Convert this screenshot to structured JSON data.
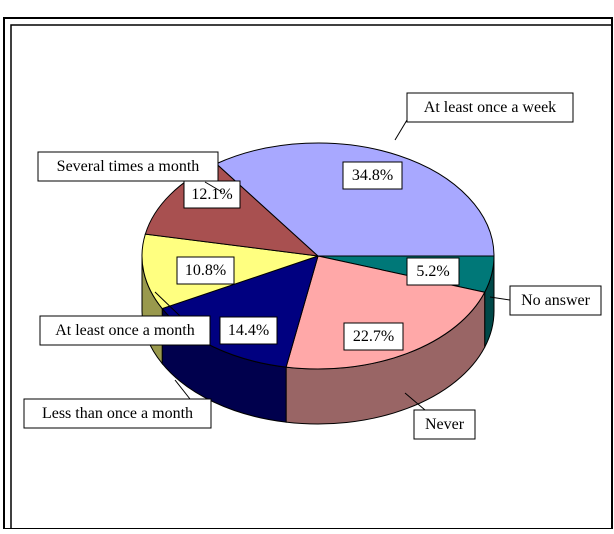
{
  "chart_data": {
    "type": "pie3d",
    "categories": [
      "No answer",
      "Never",
      "Less than once a month",
      "At least once a month",
      "Several times a month",
      "At least once a week"
    ],
    "values": [
      5.2,
      22.7,
      14.4,
      10.8,
      12.1,
      34.8
    ],
    "value_labels": [
      "5.2%",
      "22.7%",
      "14.4%",
      "10.8%",
      "12.1%",
      "34.8%"
    ],
    "colors": [
      "#007878",
      "#ffa8a8",
      "#000080",
      "#ffff80",
      "#a85050",
      "#a8a8ff"
    ]
  }
}
